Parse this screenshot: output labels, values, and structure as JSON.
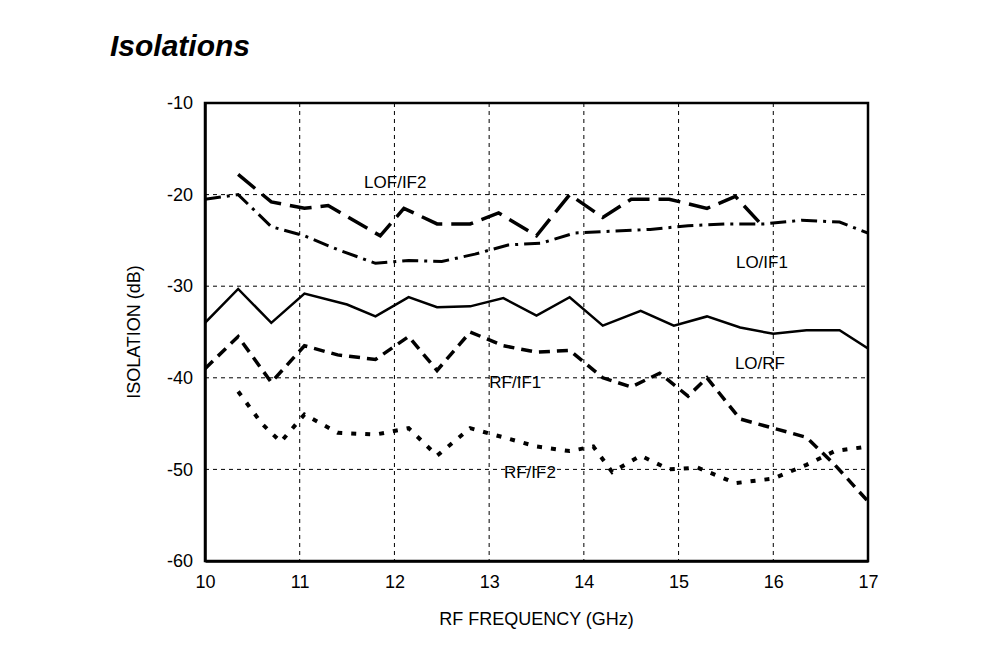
{
  "chart_data": {
    "type": "line",
    "title": "Isolations",
    "x_label": "RF FREQUENCY (GHz)",
    "y_label": "ISOLATION (dB)",
    "xlim": [
      10,
      17
    ],
    "ylim": [
      -60,
      -10
    ],
    "xticks": [
      10,
      11,
      12,
      13,
      14,
      15,
      16,
      17
    ],
    "yticks": [
      -60,
      -50,
      -40,
      -30,
      -20,
      -10
    ],
    "grid": true,
    "series": [
      {
        "name": "LOF/IF2",
        "color": "#000000",
        "line_style": "long_dash",
        "x": [
          10.35,
          10.7,
          11.05,
          11.3,
          11.6,
          11.85,
          12.1,
          12.45,
          12.8,
          13.1,
          13.5,
          13.85,
          14.2,
          14.5,
          14.9,
          15.3,
          15.6,
          15.85
        ],
        "values": [
          -17.8,
          -20.8,
          -21.5,
          -21.2,
          -23,
          -24.5,
          -21.5,
          -23.2,
          -23.2,
          -22,
          -24.5,
          -20,
          -22.5,
          -20.5,
          -20.5,
          -21.5,
          -20.2,
          -23
        ]
      },
      {
        "name": "LO/IF1",
        "color": "#000000",
        "line_style": "dash_dot",
        "x": [
          10,
          10.35,
          10.7,
          11.05,
          11.4,
          11.8,
          12.15,
          12.5,
          12.85,
          13.2,
          13.55,
          13.9,
          14.3,
          14.7,
          15.1,
          15.5,
          15.9,
          16.3,
          16.7,
          17
        ],
        "values": [
          -20.5,
          -20,
          -23.5,
          -24.5,
          -26,
          -27.5,
          -27.2,
          -27.3,
          -26.5,
          -25.5,
          -25.3,
          -24.2,
          -24,
          -23.8,
          -23.4,
          -23.2,
          -23.2,
          -22.8,
          -23,
          -24.2
        ]
      },
      {
        "name": "LO/RF",
        "color": "#000000",
        "line_style": "solid",
        "x": [
          10,
          10.35,
          10.7,
          11.05,
          11.5,
          11.8,
          12.15,
          12.45,
          12.8,
          13.15,
          13.5,
          13.85,
          14.2,
          14.6,
          14.95,
          15.3,
          15.65,
          16,
          16.35,
          16.7,
          17
        ],
        "values": [
          -34,
          -30.3,
          -34,
          -30.8,
          -32,
          -33.3,
          -31.2,
          -32.3,
          -32.2,
          -31.3,
          -33.2,
          -31.2,
          -34.3,
          -32.7,
          -34.3,
          -33.3,
          -34.5,
          -35.2,
          -34.8,
          -34.8,
          -36.8
        ]
      },
      {
        "name": "RF/IF1",
        "color": "#000000",
        "line_style": "dashed",
        "x": [
          10,
          10.35,
          10.7,
          11.05,
          11.4,
          11.8,
          12.15,
          12.45,
          12.8,
          13.15,
          13.5,
          13.85,
          14.2,
          14.5,
          14.8,
          15.1,
          15.3,
          15.65,
          16,
          16.35,
          16.65,
          17
        ],
        "values": [
          -39,
          -35.5,
          -40.5,
          -36.5,
          -37.5,
          -38,
          -35.5,
          -39.2,
          -35,
          -36.5,
          -37.2,
          -37,
          -40,
          -41,
          -39.5,
          -42,
          -40,
          -44.5,
          -45.5,
          -46.5,
          -49.5,
          -53.5
        ]
      },
      {
        "name": "RF/IF2",
        "color": "#000000",
        "line_style": "dotted",
        "x": [
          10.35,
          10.6,
          10.8,
          11.05,
          11.4,
          11.8,
          12.15,
          12.45,
          12.8,
          13.15,
          13.5,
          13.85,
          14.1,
          14.3,
          14.6,
          14.9,
          15.2,
          15.6,
          16,
          16.35,
          16.65,
          17
        ],
        "values": [
          -41.5,
          -45,
          -47,
          -44,
          -46,
          -46.2,
          -45.5,
          -48.5,
          -45.5,
          -46.5,
          -47.5,
          -48,
          -47.5,
          -50.3,
          -48.5,
          -50,
          -49.8,
          -51.5,
          -51,
          -49.5,
          -48,
          -47.5
        ]
      }
    ]
  }
}
